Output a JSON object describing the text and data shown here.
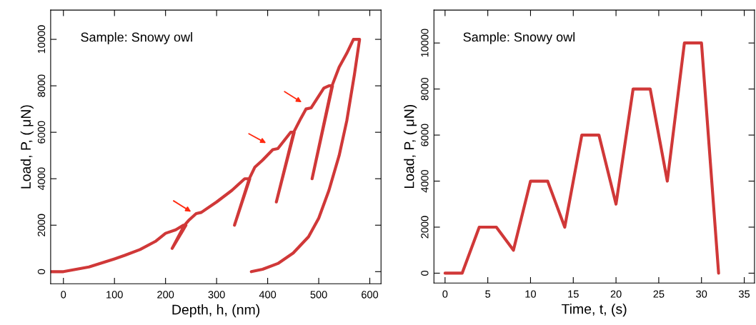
{
  "chart_data": [
    {
      "type": "line",
      "xlabel": "Depth, h, (nm)",
      "ylabel": "Load, P, ( μN)",
      "annotations": [
        "Sample: Snowy owl"
      ],
      "series": [
        {
          "color": "#d03838",
          "x": [
            -25,
            0,
            50,
            100,
            120,
            150,
            180,
            200,
            220,
            235,
            240,
            213,
            237,
            245,
            260,
            270,
            300,
            330,
            355,
            365,
            335,
            364,
            375,
            390,
            410,
            420,
            445,
            452,
            417,
            451,
            465,
            475,
            485,
            510,
            520,
            527,
            487,
            526,
            540,
            555,
            568,
            580,
            570,
            555,
            540,
            520,
            500,
            480,
            450,
            420,
            390,
            368
          ],
          "values": [
            0,
            0,
            200,
            550,
            700,
            950,
            1300,
            1650,
            1800,
            2000,
            2000,
            1000,
            2000,
            2200,
            2500,
            2550,
            3000,
            3500,
            4000,
            4000,
            2000,
            4000,
            4500,
            4800,
            5250,
            5300,
            6000,
            6000,
            3000,
            6000,
            6600,
            7000,
            7050,
            7900,
            8000,
            8000,
            4000,
            8000,
            8800,
            9400,
            10000,
            10000,
            8500,
            6500,
            5000,
            3500,
            2300,
            1500,
            800,
            350,
            100,
            0
          ]
        }
      ],
      "xlim": [
        -25,
        622
      ],
      "ylim": [
        -520,
        11260
      ],
      "xticks": [
        0,
        100,
        200,
        300,
        400,
        500,
        600
      ],
      "yticks": [
        0,
        2000,
        4000,
        6000,
        8000,
        10000
      ],
      "grid": false,
      "legend": false,
      "marker": "none",
      "line_style": "solid"
    },
    {
      "type": "line",
      "xlabel": "Time, t, (s)",
      "ylabel": "Load, P, ( μN)",
      "annotations": [
        "Sample: Snowy owl"
      ],
      "series": [
        {
          "color": "#d03838",
          "x": [
            0,
            2,
            4,
            6,
            8,
            10,
            12,
            14,
            16,
            18,
            20,
            22,
            24,
            26,
            28,
            30,
            32
          ],
          "values": [
            0,
            0,
            2000,
            2000,
            1000,
            4000,
            4000,
            2000,
            6000,
            6000,
            3000,
            8000,
            8000,
            4000,
            10000,
            10000,
            0
          ]
        }
      ],
      "xlim": [
        -1.3,
        36.2
      ],
      "ylim": [
        -430,
        11430
      ],
      "xticks": [
        0,
        5,
        10,
        15,
        20,
        25,
        30,
        35
      ],
      "yticks": [
        0,
        2000,
        4000,
        6000,
        8000,
        10000
      ],
      "grid": false,
      "legend": false,
      "marker": "none",
      "line_style": "solid"
    }
  ]
}
